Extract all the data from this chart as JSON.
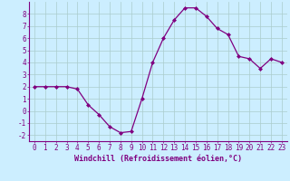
{
  "x": [
    0,
    1,
    2,
    3,
    4,
    5,
    6,
    7,
    8,
    9,
    10,
    11,
    12,
    13,
    14,
    15,
    16,
    17,
    18,
    19,
    20,
    21,
    22,
    23
  ],
  "y": [
    2.0,
    2.0,
    2.0,
    2.0,
    1.8,
    0.5,
    -0.3,
    -1.3,
    -1.8,
    -1.7,
    1.0,
    4.0,
    6.0,
    7.5,
    8.5,
    8.5,
    7.8,
    6.8,
    6.3,
    4.5,
    4.3,
    3.5,
    4.3,
    4.0
  ],
  "line_color": "#800080",
  "marker": "D",
  "marker_size": 2.0,
  "bg_color": "#cceeff",
  "grid_color": "#aacccc",
  "xlabel": "Windchill (Refroidissement éolien,°C)",
  "xlabel_color": "#800080",
  "tick_color": "#800080",
  "axis_color": "#800080",
  "ylim": [
    -2.5,
    9.0
  ],
  "xlim": [
    -0.5,
    23.5
  ],
  "yticks": [
    -2,
    -1,
    0,
    1,
    2,
    3,
    4,
    5,
    6,
    7,
    8
  ],
  "xticks": [
    0,
    1,
    2,
    3,
    4,
    5,
    6,
    7,
    8,
    9,
    10,
    11,
    12,
    13,
    14,
    15,
    16,
    17,
    18,
    19,
    20,
    21,
    22,
    23
  ],
  "tick_fontsize": 5.5,
  "xlabel_fontsize": 6.0
}
